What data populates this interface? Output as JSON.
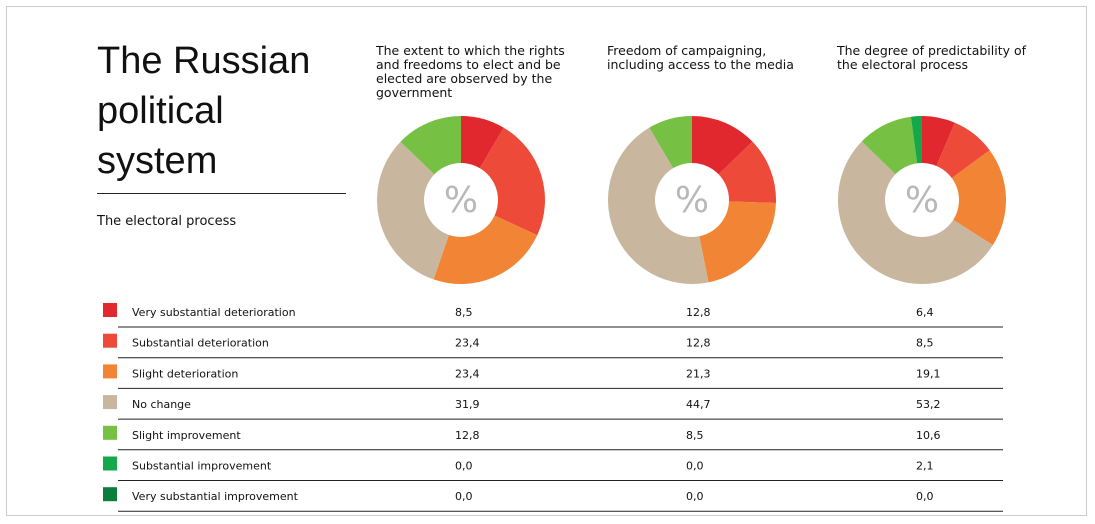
{
  "title": "The Russian political system",
  "subtitle": "The electoral process",
  "categories": [
    "Very substantial deterioration",
    "Substantial deterioration",
    "Slight deterioration",
    "No change",
    "Slight improvement",
    "Substantial improvement",
    "Very substantial improvement"
  ],
  "colors": [
    "#e0282e",
    "#ee4a3a",
    "#f28535",
    "#c9b69e",
    "#76c043",
    "#13a84a",
    "#0a7f3c"
  ],
  "chart_data": [
    {
      "type": "pie",
      "title": "The extent to which the rights and freedoms to elect and be elected are observed by the government",
      "center_label": "%",
      "values": [
        8.5,
        23.4,
        23.4,
        31.9,
        12.8,
        0.0,
        0.0
      ],
      "value_labels": [
        "8,5",
        "23,4",
        "23,4",
        "31,9",
        "12,8",
        "0,0",
        "0,0"
      ]
    },
    {
      "type": "pie",
      "title": "Freedom of campaigning, including access to the media",
      "center_label": "%",
      "values": [
        12.8,
        12.8,
        21.3,
        44.7,
        8.5,
        0.0,
        0.0
      ],
      "value_labels": [
        "12,8",
        "12,8",
        "21,3",
        "44,7",
        "8,5",
        "0,0",
        "0,0"
      ]
    },
    {
      "type": "pie",
      "title": "The degree of predictability of the electoral process",
      "center_label": "%",
      "values": [
        6.4,
        8.5,
        19.1,
        53.2,
        10.6,
        2.1,
        0.0
      ],
      "value_labels": [
        "6,4",
        "8,5",
        "19,1",
        "53,2",
        "10,6",
        "2,1",
        "0,0"
      ]
    }
  ]
}
